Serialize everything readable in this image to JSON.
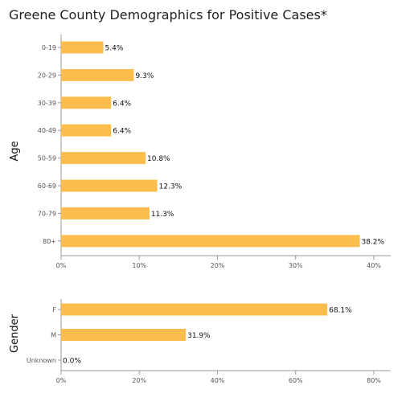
{
  "title": "Greene County Demographics for Positive Cases*",
  "colors": {
    "bar": "#FDBD4C",
    "axis": "#999999"
  },
  "chart_data": [
    {
      "type": "bar",
      "orientation": "horizontal",
      "ylabel": "Age",
      "categories": [
        "0-19",
        "20-29",
        "30-39",
        "40-49",
        "50-59",
        "60-69",
        "70-79",
        "80+"
      ],
      "values": [
        5.4,
        9.3,
        6.4,
        6.4,
        10.8,
        12.3,
        11.3,
        38.2
      ],
      "value_labels": [
        "5.4%",
        "9.3%",
        "6.4%",
        "6.4%",
        "10.8%",
        "12.3%",
        "11.3%",
        "38.2%"
      ],
      "xlim": [
        0,
        40
      ],
      "xticks": [
        0,
        10,
        20,
        30,
        40
      ],
      "xtick_labels": [
        "0%",
        "10%",
        "20%",
        "30%",
        "40%"
      ]
    },
    {
      "type": "bar",
      "orientation": "horizontal",
      "ylabel": "Gender",
      "categories": [
        "F",
        "M",
        "Unknown"
      ],
      "values": [
        68.1,
        31.9,
        0.0
      ],
      "value_labels": [
        "68.1%",
        "31.9%",
        "0.0%"
      ],
      "xlim": [
        0,
        80
      ],
      "xticks": [
        0,
        20,
        40,
        60,
        80
      ],
      "xtick_labels": [
        "0%",
        "20%",
        "40%",
        "60%",
        "80%"
      ]
    }
  ]
}
